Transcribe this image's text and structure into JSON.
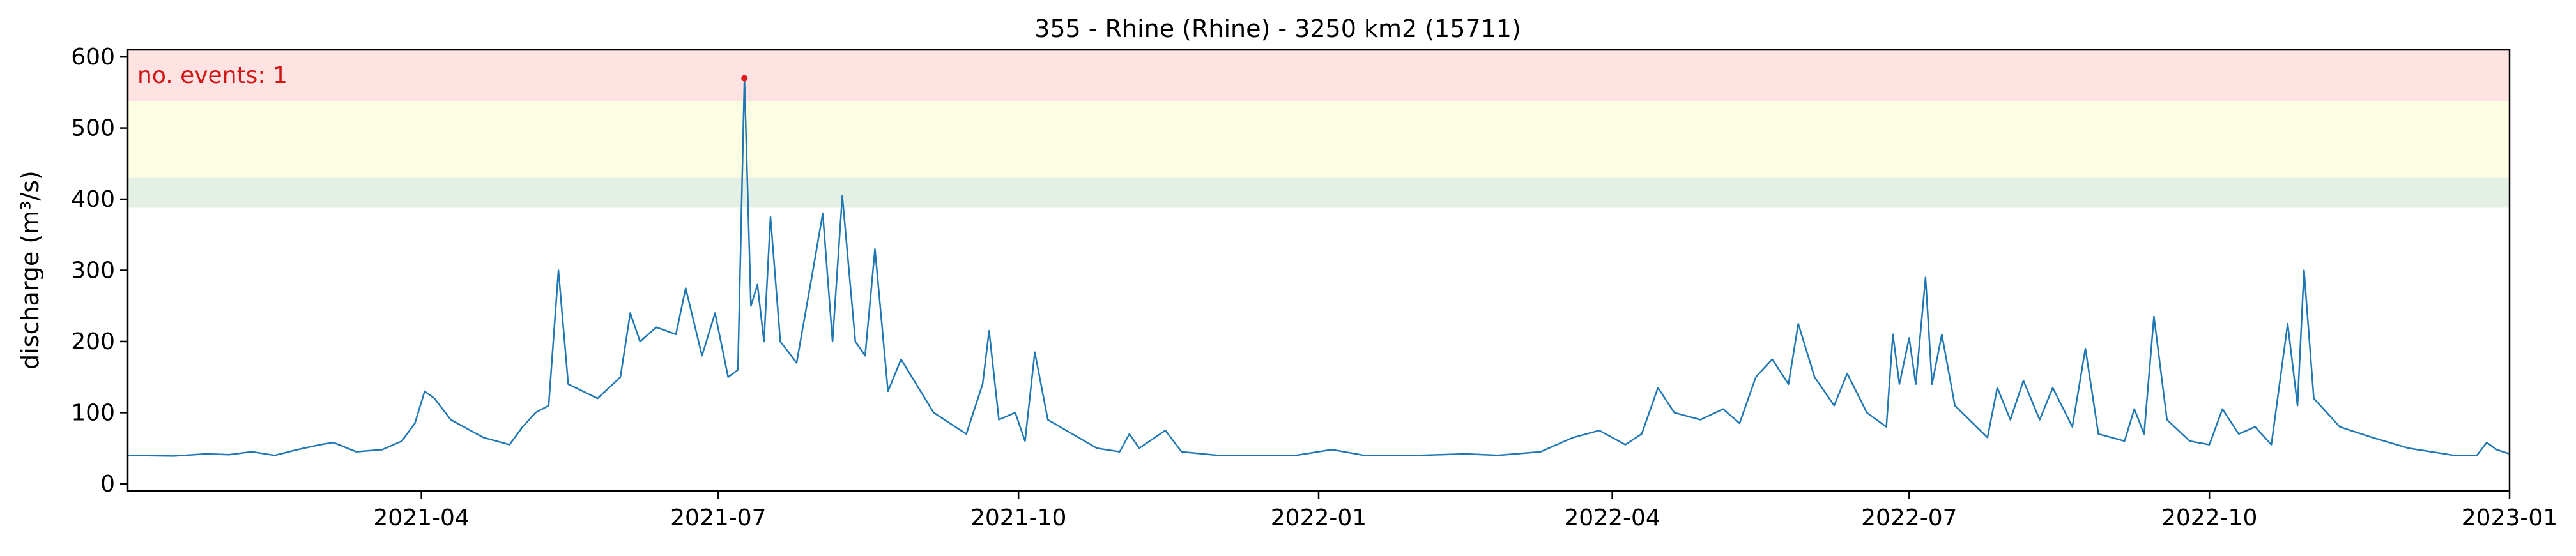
{
  "chart_data": {
    "type": "line",
    "title": "355 - Rhine (Rhine) - 3250 km2 (15711)",
    "xlabel": "",
    "ylabel": "discharge (m³/s)",
    "xlim": [
      "2021-01-01",
      "2023-01-01"
    ],
    "ylim": [
      -10,
      610
    ],
    "grid": false,
    "y_ticks": [
      0,
      100,
      200,
      300,
      400,
      500,
      600
    ],
    "x_ticks": [
      "2021-04",
      "2021-07",
      "2021-10",
      "2022-01",
      "2022-04",
      "2022-07",
      "2022-10",
      "2023-01"
    ],
    "x_tick_dates": [
      "2021-04-01",
      "2021-07-01",
      "2021-10-01",
      "2022-01-01",
      "2022-04-01",
      "2022-07-01",
      "2022-10-01",
      "2023-01-01"
    ],
    "threshold_bands": [
      {
        "name": "high",
        "y_from": 538,
        "y_to": 610,
        "color": "#ffe3e3"
      },
      {
        "name": "medium",
        "y_from": 430,
        "y_to": 538,
        "color": "#fefee3"
      },
      {
        "name": "low",
        "y_from": 388,
        "y_to": 430,
        "color": "#e5f0e5"
      }
    ],
    "annotation": {
      "text": "no. events: 1",
      "color": "#d11414"
    },
    "event_point": {
      "x": "2021-07-09",
      "y": 570,
      "color": "#e01b1b"
    },
    "series": [
      {
        "color": "#1f77b4",
        "points": [
          [
            "2021-01-01",
            40
          ],
          [
            "2021-01-15",
            39
          ],
          [
            "2021-01-25",
            42
          ],
          [
            "2021-02-01",
            41
          ],
          [
            "2021-02-08",
            45
          ],
          [
            "2021-02-15",
            40
          ],
          [
            "2021-02-22",
            48
          ],
          [
            "2021-03-01",
            55
          ],
          [
            "2021-03-05",
            58
          ],
          [
            "2021-03-12",
            45
          ],
          [
            "2021-03-20",
            48
          ],
          [
            "2021-03-26",
            60
          ],
          [
            "2021-03-30",
            85
          ],
          [
            "2021-04-02",
            130
          ],
          [
            "2021-04-05",
            120
          ],
          [
            "2021-04-10",
            90
          ],
          [
            "2021-04-20",
            65
          ],
          [
            "2021-04-28",
            55
          ],
          [
            "2021-05-02",
            80
          ],
          [
            "2021-05-06",
            100
          ],
          [
            "2021-05-10",
            110
          ],
          [
            "2021-05-13",
            300
          ],
          [
            "2021-05-16",
            140
          ],
          [
            "2021-05-25",
            120
          ],
          [
            "2021-06-01",
            150
          ],
          [
            "2021-06-04",
            240
          ],
          [
            "2021-06-07",
            200
          ],
          [
            "2021-06-12",
            220
          ],
          [
            "2021-06-18",
            210
          ],
          [
            "2021-06-21",
            275
          ],
          [
            "2021-06-26",
            180
          ],
          [
            "2021-06-30",
            240
          ],
          [
            "2021-07-04",
            150
          ],
          [
            "2021-07-07",
            160
          ],
          [
            "2021-07-09",
            570
          ],
          [
            "2021-07-11",
            250
          ],
          [
            "2021-07-13",
            280
          ],
          [
            "2021-07-15",
            200
          ],
          [
            "2021-07-17",
            375
          ],
          [
            "2021-07-20",
            200
          ],
          [
            "2021-07-25",
            170
          ],
          [
            "2021-07-30",
            300
          ],
          [
            "2021-08-02",
            380
          ],
          [
            "2021-08-05",
            200
          ],
          [
            "2021-08-08",
            405
          ],
          [
            "2021-08-12",
            200
          ],
          [
            "2021-08-15",
            180
          ],
          [
            "2021-08-18",
            330
          ],
          [
            "2021-08-22",
            130
          ],
          [
            "2021-08-26",
            175
          ],
          [
            "2021-09-05",
            100
          ],
          [
            "2021-09-15",
            70
          ],
          [
            "2021-09-20",
            140
          ],
          [
            "2021-09-22",
            215
          ],
          [
            "2021-09-25",
            90
          ],
          [
            "2021-09-30",
            100
          ],
          [
            "2021-10-03",
            60
          ],
          [
            "2021-10-06",
            185
          ],
          [
            "2021-10-10",
            90
          ],
          [
            "2021-10-25",
            50
          ],
          [
            "2021-11-01",
            45
          ],
          [
            "2021-11-04",
            70
          ],
          [
            "2021-11-07",
            50
          ],
          [
            "2021-11-15",
            75
          ],
          [
            "2021-11-20",
            45
          ],
          [
            "2021-12-01",
            40
          ],
          [
            "2021-12-25",
            40
          ],
          [
            "2022-01-05",
            48
          ],
          [
            "2022-01-15",
            40
          ],
          [
            "2022-02-01",
            40
          ],
          [
            "2022-02-15",
            42
          ],
          [
            "2022-02-25",
            40
          ],
          [
            "2022-03-10",
            45
          ],
          [
            "2022-03-20",
            65
          ],
          [
            "2022-03-28",
            75
          ],
          [
            "2022-04-05",
            55
          ],
          [
            "2022-04-10",
            70
          ],
          [
            "2022-04-15",
            135
          ],
          [
            "2022-04-20",
            100
          ],
          [
            "2022-04-28",
            90
          ],
          [
            "2022-05-05",
            105
          ],
          [
            "2022-05-10",
            85
          ],
          [
            "2022-05-15",
            150
          ],
          [
            "2022-05-20",
            175
          ],
          [
            "2022-05-25",
            140
          ],
          [
            "2022-05-28",
            225
          ],
          [
            "2022-06-02",
            150
          ],
          [
            "2022-06-08",
            110
          ],
          [
            "2022-06-12",
            155
          ],
          [
            "2022-06-18",
            100
          ],
          [
            "2022-06-24",
            80
          ],
          [
            "2022-06-26",
            210
          ],
          [
            "2022-06-28",
            140
          ],
          [
            "2022-07-01",
            205
          ],
          [
            "2022-07-03",
            140
          ],
          [
            "2022-07-06",
            290
          ],
          [
            "2022-07-08",
            140
          ],
          [
            "2022-07-11",
            210
          ],
          [
            "2022-07-15",
            110
          ],
          [
            "2022-07-25",
            65
          ],
          [
            "2022-07-28",
            135
          ],
          [
            "2022-08-01",
            90
          ],
          [
            "2022-08-05",
            145
          ],
          [
            "2022-08-10",
            90
          ],
          [
            "2022-08-14",
            135
          ],
          [
            "2022-08-20",
            80
          ],
          [
            "2022-08-24",
            190
          ],
          [
            "2022-08-28",
            70
          ],
          [
            "2022-09-05",
            60
          ],
          [
            "2022-09-08",
            105
          ],
          [
            "2022-09-11",
            70
          ],
          [
            "2022-09-14",
            235
          ],
          [
            "2022-09-18",
            90
          ],
          [
            "2022-09-25",
            60
          ],
          [
            "2022-10-01",
            55
          ],
          [
            "2022-10-05",
            105
          ],
          [
            "2022-10-10",
            70
          ],
          [
            "2022-10-15",
            80
          ],
          [
            "2022-10-20",
            55
          ],
          [
            "2022-10-25",
            225
          ],
          [
            "2022-10-28",
            110
          ],
          [
            "2022-10-30",
            300
          ],
          [
            "2022-11-02",
            120
          ],
          [
            "2022-11-10",
            80
          ],
          [
            "2022-11-20",
            65
          ],
          [
            "2022-12-01",
            50
          ],
          [
            "2022-12-15",
            40
          ],
          [
            "2022-12-22",
            40
          ],
          [
            "2022-12-25",
            58
          ],
          [
            "2022-12-28",
            48
          ],
          [
            "2023-01-01",
            42
          ]
        ]
      }
    ]
  }
}
